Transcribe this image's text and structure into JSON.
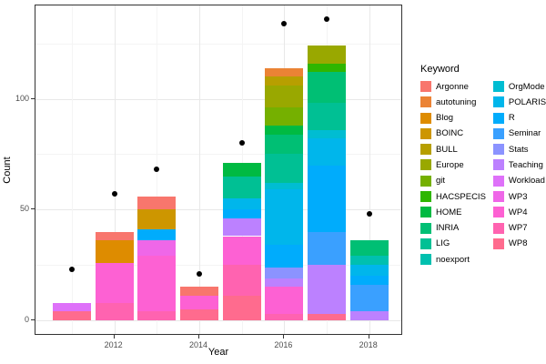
{
  "legend": {
    "title": "Keyword"
  },
  "axes": {
    "x": {
      "label": "Year",
      "ticks": [
        "2012",
        "2014",
        "2016",
        "2018"
      ]
    },
    "y": {
      "label": "Count",
      "ticks": [
        "0",
        "50",
        "100"
      ]
    }
  },
  "chart_data": {
    "type": "bar",
    "stacked": true,
    "overlay": "scatter",
    "title": "",
    "xlabel": "Year",
    "ylabel": "Count",
    "x_years": [
      2011,
      2012,
      2013,
      2014,
      2015,
      2016,
      2017,
      2018
    ],
    "x_major_ticks": [
      2012,
      2014,
      2016,
      2018
    ],
    "x_minor_years": [
      2011,
      2013,
      2015,
      2017
    ],
    "y_major_ticks": [
      0,
      50,
      100
    ],
    "y_minor_ticks": [
      25,
      75,
      125
    ],
    "ylim": [
      0,
      142
    ],
    "grid": true,
    "legend_position": "right",
    "legend_title": "Keyword",
    "keywords": [
      {
        "name": "Argonne",
        "color": "#F8766D"
      },
      {
        "name": "autotuning",
        "color": "#EB8335"
      },
      {
        "name": "Blog",
        "color": "#DE8C00"
      },
      {
        "name": "BOINC",
        "color": "#CD9600"
      },
      {
        "name": "BULL",
        "color": "#B79F00"
      },
      {
        "name": "Europe",
        "color": "#99A800"
      },
      {
        "name": "git",
        "color": "#75B000"
      },
      {
        "name": "HACSPECIS",
        "color": "#2FB600"
      },
      {
        "name": "HOME",
        "color": "#00BA42"
      },
      {
        "name": "INRIA",
        "color": "#00BF74"
      },
      {
        "name": "LIG",
        "color": "#00C094"
      },
      {
        "name": "noexport",
        "color": "#00C0AF"
      },
      {
        "name": "OrgMode",
        "color": "#00BDD2"
      },
      {
        "name": "POLARIS",
        "color": "#00B6EB"
      },
      {
        "name": "R",
        "color": "#00ACFC"
      },
      {
        "name": "Seminar",
        "color": "#3AA0FF"
      },
      {
        "name": "Stats",
        "color": "#8B93FF"
      },
      {
        "name": "Teaching",
        "color": "#BC81FF"
      },
      {
        "name": "Workload",
        "color": "#DE71F9"
      },
      {
        "name": "WP3",
        "color": "#EF67E8"
      },
      {
        "name": "WP4",
        "color": "#FD61D3"
      },
      {
        "name": "WP7",
        "color": "#FF63B0"
      },
      {
        "name": "WP8",
        "color": "#FF6B8E"
      }
    ],
    "bars": [
      {
        "year": 2011,
        "total": 8,
        "point": 23,
        "segments": [
          {
            "keyword": "Workload",
            "value": 4
          },
          {
            "keyword": "WP8",
            "value": 4
          }
        ]
      },
      {
        "year": 2012,
        "total": 40,
        "point": 57,
        "segments": [
          {
            "keyword": "Argonne",
            "value": 4
          },
          {
            "keyword": "Blog",
            "value": 10
          },
          {
            "keyword": "WP4",
            "value": 18
          },
          {
            "keyword": "WP7",
            "value": 8
          }
        ]
      },
      {
        "year": 2013,
        "total": 56,
        "point": 68,
        "segments": [
          {
            "keyword": "Argonne",
            "value": 6
          },
          {
            "keyword": "BOINC",
            "value": 9
          },
          {
            "keyword": "R",
            "value": 5
          },
          {
            "keyword": "WP3",
            "value": 7
          },
          {
            "keyword": "WP4",
            "value": 25
          },
          {
            "keyword": "WP7",
            "value": 4
          }
        ]
      },
      {
        "year": 2014,
        "total": 15,
        "point": 21,
        "segments": [
          {
            "keyword": "Argonne",
            "value": 4
          },
          {
            "keyword": "WP4",
            "value": 6
          },
          {
            "keyword": "WP8",
            "value": 5
          }
        ]
      },
      {
        "year": 2015,
        "total": 71,
        "point": 80,
        "segments": [
          {
            "keyword": "HOME",
            "value": 6
          },
          {
            "keyword": "LIG",
            "value": 10
          },
          {
            "keyword": "POLARIS",
            "value": 5
          },
          {
            "keyword": "R",
            "value": 4
          },
          {
            "keyword": "Teaching",
            "value": 8
          },
          {
            "keyword": "WP4",
            "value": 13
          },
          {
            "keyword": "WP7",
            "value": 14
          },
          {
            "keyword": "WP8",
            "value": 11
          }
        ]
      },
      {
        "year": 2016,
        "total": 114,
        "point": 134,
        "segments": [
          {
            "keyword": "autotuning",
            "value": 4
          },
          {
            "keyword": "BULL",
            "value": 4
          },
          {
            "keyword": "Europe",
            "value": 10
          },
          {
            "keyword": "git",
            "value": 8
          },
          {
            "keyword": "HOME",
            "value": 4
          },
          {
            "keyword": "INRIA",
            "value": 9
          },
          {
            "keyword": "LIG",
            "value": 13
          },
          {
            "keyword": "OrgMode",
            "value": 3
          },
          {
            "keyword": "POLARIS",
            "value": 25
          },
          {
            "keyword": "R",
            "value": 10
          },
          {
            "keyword": "Stats",
            "value": 5
          },
          {
            "keyword": "Teaching",
            "value": 4
          },
          {
            "keyword": "WP4",
            "value": 12
          },
          {
            "keyword": "WP7",
            "value": 3
          }
        ]
      },
      {
        "year": 2017,
        "total": 124,
        "point": 136,
        "segments": [
          {
            "keyword": "Europe",
            "value": 8
          },
          {
            "keyword": "HACSPECIS",
            "value": 4
          },
          {
            "keyword": "INRIA",
            "value": 14
          },
          {
            "keyword": "LIG",
            "value": 12
          },
          {
            "keyword": "OrgMode",
            "value": 4
          },
          {
            "keyword": "POLARIS",
            "value": 12
          },
          {
            "keyword": "R",
            "value": 30
          },
          {
            "keyword": "Seminar",
            "value": 15
          },
          {
            "keyword": "Teaching",
            "value": 22
          },
          {
            "keyword": "WP8",
            "value": 3
          }
        ]
      },
      {
        "year": 2018,
        "total": 36,
        "point": 48,
        "segments": [
          {
            "keyword": "INRIA",
            "value": 7
          },
          {
            "keyword": "noexport",
            "value": 4
          },
          {
            "keyword": "POLARIS",
            "value": 5
          },
          {
            "keyword": "R",
            "value": 4
          },
          {
            "keyword": "Seminar",
            "value": 12
          },
          {
            "keyword": "Teaching",
            "value": 4
          }
        ]
      }
    ]
  }
}
